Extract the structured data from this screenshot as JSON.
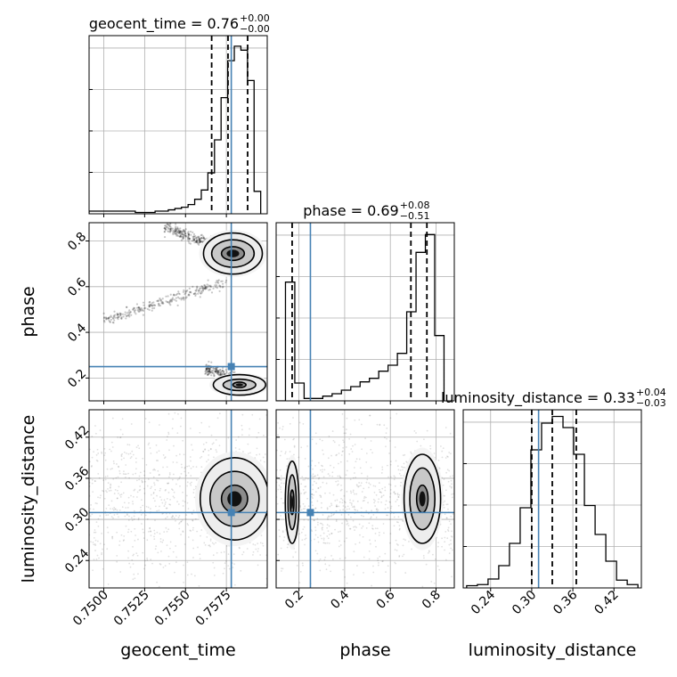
{
  "colors": {
    "truth": "#4682b4",
    "hist": "#000000",
    "grid": "#b0b0b0",
    "frame": "#000000",
    "points": "#000000"
  },
  "chart_data": {
    "type": "corner",
    "parameters": [
      {
        "name": "geocent_time",
        "title_main": "geocent_time = 0.76",
        "title_sup": "+0.00",
        "title_sub": "−0.00",
        "range": [
          0.7491,
          0.76
        ],
        "ticks": [
          0.75,
          0.7525,
          0.755,
          0.7575
        ],
        "tick_labels": [
          "0.7500",
          "0.7525",
          "0.7550",
          "0.7575"
        ],
        "truth": 0.7578,
        "quantiles": [
          0.7566,
          0.7576,
          0.7588
        ],
        "hist_edges": [
          0.7491,
          0.7596
        ],
        "hist_counts": [
          2,
          2,
          2,
          2,
          2,
          2,
          2,
          1,
          1,
          1,
          2,
          2,
          3,
          4,
          5,
          7,
          11,
          18,
          31,
          56,
          88,
          116,
          127,
          124,
          101,
          17
        ],
        "hist_max": 135
      },
      {
        "name": "phase",
        "title_main": "phase = 0.69",
        "title_sup": "+0.08",
        "title_sub": "−0.51",
        "range": [
          0.1,
          0.88
        ],
        "ticks": [
          0.2,
          0.4,
          0.6,
          0.8
        ],
        "tick_labels": [
          "0.2",
          "0.4",
          "0.6",
          "0.8"
        ],
        "truth": 0.25,
        "quantiles": [
          0.17,
          0.69,
          0.76
        ],
        "hist_edges": [
          0.1,
          0.835
        ],
        "hist_counts": [
          0,
          20,
          3,
          0.4,
          0.4,
          0.8,
          1.2,
          1.8,
          2.4,
          3.2,
          3.8,
          5,
          6,
          8,
          15,
          25,
          28,
          11
        ],
        "hist_max": 30
      },
      {
        "name": "luminosity_distance",
        "title_main": "luminosity_distance = 0.33",
        "title_sup": "+0.04",
        "title_sub": "−0.03",
        "range": [
          0.2,
          0.46
        ],
        "ticks": [
          0.24,
          0.3,
          0.36,
          0.42
        ],
        "tick_labels": [
          "0.24",
          "0.30",
          "0.36",
          "0.42"
        ],
        "truth": 0.31,
        "quantiles": [
          0.3,
          0.33,
          0.365
        ],
        "hist_edges": [
          0.205,
          0.455
        ],
        "hist_counts": [
          1,
          1.5,
          4,
          10,
          20,
          36,
          62,
          74,
          77,
          72,
          60,
          37,
          24,
          12,
          3.5,
          1.5
        ],
        "hist_max": 80
      }
    ],
    "density": {
      "phase_vs_geocent_time": {
        "levels": [
          0.9,
          0.7,
          0.5
        ],
        "regions": [
          {
            "cx": 0.7579,
            "cy": 0.745,
            "rx": [
              0.0018,
              0.0013,
              0.0007
            ],
            "ry": [
              0.09,
              0.06,
              0.03
            ]
          },
          {
            "cx": 0.7583,
            "cy": 0.17,
            "rx": [
              0.0016,
              0.001,
              0.0004
            ],
            "ry": [
              0.045,
              0.025,
              0.012
            ]
          }
        ],
        "tails": [
          {
            "x": [
              0.7537,
              0.7568
            ],
            "y": [
              0.86,
              0.78
            ]
          },
          {
            "x": [
              0.75,
              0.7575
            ],
            "y": [
              0.45,
              0.62
            ]
          },
          {
            "x": [
              0.7562,
              0.7583
            ],
            "y": [
              0.24,
              0.19
            ]
          }
        ]
      },
      "luminosity_distance_vs_geocent_time": {
        "regions": [
          {
            "cx": 0.758,
            "cy": 0.33,
            "rx": [
              0.0021,
              0.0015,
              0.0008
            ],
            "ry": [
              0.06,
              0.04,
              0.02
            ]
          }
        ]
      },
      "luminosity_distance_vs_phase": {
        "regions": [
          {
            "cx": 0.17,
            "cy": 0.325,
            "rx": [
              0.03,
              0.018,
              0.008
            ],
            "ry": [
              0.06,
              0.04,
              0.018
            ]
          },
          {
            "cx": 0.74,
            "cy": 0.33,
            "rx": [
              0.08,
              0.055,
              0.025
            ],
            "ry": [
              0.065,
              0.045,
              0.02
            ]
          }
        ]
      }
    },
    "truth_point": {
      "geocent_time": 0.7578,
      "phase": 0.25,
      "luminosity_distance": 0.31
    }
  }
}
